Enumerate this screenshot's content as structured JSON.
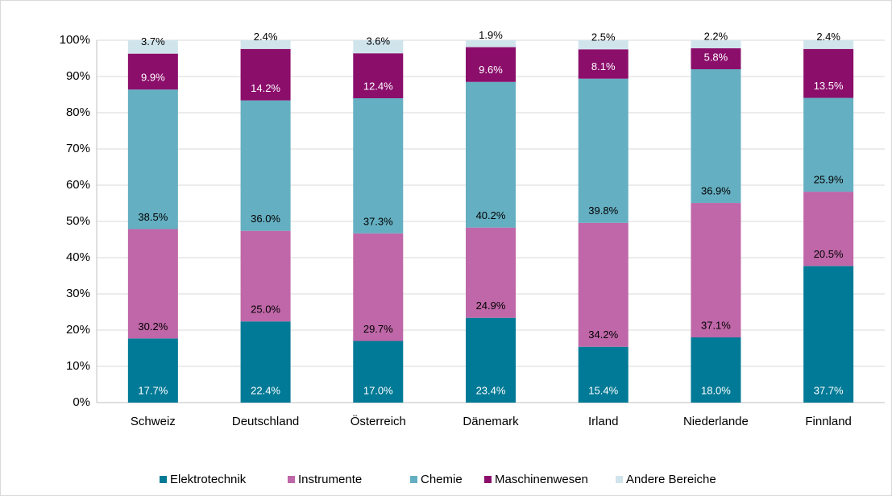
{
  "chart_data": {
    "type": "stacked_bar",
    "categories": [
      "Schweiz",
      "Deutschland",
      "Österreich",
      "Dänemark",
      "Irland",
      "Niederlande",
      "Finnland"
    ],
    "series": [
      {
        "name": "Elektrotechnik",
        "color": "#007a96",
        "values": [
          17.7,
          22.4,
          17.0,
          23.4,
          15.4,
          18.0,
          37.7
        ],
        "value_labels": [
          "17.7%",
          "22.4%",
          "17.0%",
          "23.4%",
          "15.4%",
          "18.0%",
          "37.7%"
        ]
      },
      {
        "name": "Instrumente",
        "color": "#bf67a8",
        "values": [
          30.2,
          25.0,
          29.7,
          24.9,
          34.2,
          37.1,
          20.5
        ],
        "value_labels": [
          "30.2%",
          "25.0%",
          "29.7%",
          "24.9%",
          "34.2%",
          "37.1%",
          "20.5%"
        ]
      },
      {
        "name": "Chemie",
        "color": "#65afc2",
        "values": [
          38.5,
          36.0,
          37.3,
          40.2,
          39.8,
          36.9,
          25.9
        ],
        "value_labels": [
          "38.5%",
          "36.0%",
          "37.3%",
          "40.2%",
          "39.8%",
          "36.9%",
          "25.9%"
        ]
      },
      {
        "name": "Maschinenwesen",
        "color": "#8b0e6b",
        "values": [
          9.9,
          14.2,
          12.4,
          9.6,
          8.1,
          5.8,
          13.5
        ],
        "value_labels": [
          "9.9%",
          "14.2%",
          "12.4%",
          "9.6%",
          "8.1%",
          "5.8%",
          "13.5%"
        ]
      },
      {
        "name": "Andere Bereiche",
        "color": "#d0e4ec",
        "values": [
          3.7,
          2.4,
          3.6,
          1.9,
          2.5,
          2.2,
          2.4
        ],
        "value_labels": [
          "3.7%",
          "2.4%",
          "3.6%",
          "1.9%",
          "2.5%",
          "2.2%",
          "2.4%"
        ]
      }
    ],
    "ylim": [
      0,
      100
    ],
    "yticks": [
      {
        "value": 0,
        "label": "0%"
      },
      {
        "value": 10,
        "label": "10%"
      },
      {
        "value": 20,
        "label": "20%"
      },
      {
        "value": 30,
        "label": "30%"
      },
      {
        "value": 40,
        "label": "40%"
      },
      {
        "value": 50,
        "label": "50%"
      },
      {
        "value": 60,
        "label": "60%"
      },
      {
        "value": 70,
        "label": "70%"
      },
      {
        "value": 80,
        "label": "80%"
      },
      {
        "value": 90,
        "label": "90%"
      },
      {
        "value": 100,
        "label": "100%"
      }
    ],
    "grid": true,
    "legend": "bottom"
  }
}
